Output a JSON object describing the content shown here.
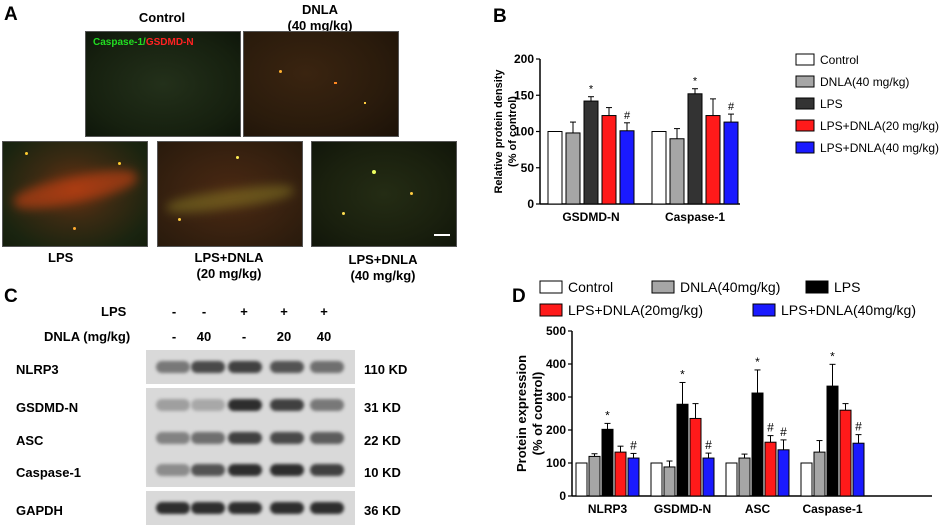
{
  "panels": {
    "A": {
      "letter": "A",
      "images": [
        {
          "label": "Control",
          "overlay": "Caspase-1/GSDMD-N",
          "overlay_green": "Caspase-1/",
          "overlay_red": "GSDMD-N"
        },
        {
          "label_line1": "DNLA",
          "label_line2": "(40 mg/kg)"
        },
        {
          "label": "LPS"
        },
        {
          "label_line1": "LPS+DNLA",
          "label_line2": "(20 mg/kg)"
        },
        {
          "label_line1": "LPS+DNLA",
          "label_line2": "(40 mg/kg)"
        }
      ]
    },
    "B": {
      "letter": "B"
    },
    "C": {
      "letter": "C",
      "lps_label": "LPS",
      "dnla_label": "DNLA (mg/kg)",
      "lps_signs": [
        "-",
        "-",
        "+",
        "+",
        "+"
      ],
      "dnla_doses": [
        "-",
        "40",
        "-",
        "20",
        "40"
      ],
      "blots": [
        {
          "protein": "NLRP3",
          "size": "110 KD",
          "intensity": [
            0.55,
            0.8,
            0.85,
            0.75,
            0.6
          ]
        },
        {
          "protein": "GSDMD-N",
          "size": "31 KD",
          "intensity": [
            0.35,
            0.3,
            0.95,
            0.85,
            0.55
          ]
        },
        {
          "protein": "ASC",
          "size": "22 KD",
          "intensity": [
            0.5,
            0.6,
            0.85,
            0.8,
            0.7
          ]
        },
        {
          "protein": "Caspase-1",
          "size": "10 KD",
          "intensity": [
            0.45,
            0.75,
            0.95,
            0.95,
            0.85
          ]
        },
        {
          "protein": "GAPDH",
          "size": "36 KD",
          "intensity": [
            0.95,
            0.95,
            0.95,
            0.95,
            0.95
          ]
        }
      ]
    },
    "D": {
      "letter": "D"
    }
  },
  "colors": {
    "control": "#ffffff",
    "dnla40": "#a6a6a6",
    "lps": "#000000",
    "lps_dnla20": "#ff1a1a",
    "lps_dnla40": "#1a1aff",
    "lps_b": "#333333",
    "overlay_green": "#22dd22",
    "overlay_red": "#ff2222"
  },
  "chart_data": [
    {
      "type": "bar",
      "panel": "B",
      "categories": [
        "GSDMD-N",
        "Caspase-1"
      ],
      "ylabel_line1": "Relative protein density",
      "ylabel_line2": "(% of control)",
      "ylim": [
        0,
        200
      ],
      "yticks": [
        "0",
        "50",
        "100",
        "150",
        "200"
      ],
      "legend_position": "right",
      "series": [
        {
          "name": "Control",
          "values": [
            100,
            100
          ],
          "errors": [
            0,
            0
          ],
          "marks": [
            "",
            ""
          ]
        },
        {
          "name": "DNLA(40 mg/kg)",
          "values": [
            98,
            90
          ],
          "errors": [
            15,
            14
          ],
          "marks": [
            "",
            ""
          ]
        },
        {
          "name": "LPS",
          "values": [
            142,
            152
          ],
          "errors": [
            6,
            7
          ],
          "marks": [
            "*",
            "*"
          ]
        },
        {
          "name": "LPS+DNLA(20 mg/kg)",
          "values": [
            122,
            122
          ],
          "errors": [
            11,
            23
          ],
          "marks": [
            "",
            ""
          ]
        },
        {
          "name": "LPS+DNLA(40 mg/kg)",
          "values": [
            101,
            113
          ],
          "errors": [
            11,
            11
          ],
          "marks": [
            "#",
            "#"
          ]
        }
      ]
    },
    {
      "type": "bar",
      "panel": "D",
      "categories": [
        "NLRP3",
        "GSDMD-N",
        "ASC",
        "Caspase-1"
      ],
      "ylabel_line1": "Protein expression",
      "ylabel_line2": "(% of control)",
      "ylim": [
        0,
        500
      ],
      "yticks": [
        "0",
        "100",
        "200",
        "300",
        "400",
        "500"
      ],
      "legend_position": "top",
      "series": [
        {
          "name": "Control",
          "values": [
            100,
            100,
            100,
            100
          ],
          "errors": [
            0,
            0,
            0,
            0
          ],
          "marks": [
            "",
            "",
            "",
            ""
          ]
        },
        {
          "name": "DNLA(40mg/kg)",
          "values": [
            120,
            88,
            115,
            133
          ],
          "errors": [
            8,
            18,
            12,
            35
          ],
          "marks": [
            "",
            "",
            "",
            ""
          ]
        },
        {
          "name": "LPS",
          "values": [
            202,
            278,
            312,
            333
          ],
          "errors": [
            18,
            66,
            70,
            66
          ],
          "marks": [
            "*",
            "*",
            "*",
            "*"
          ]
        },
        {
          "name": "LPS+DNLA(20mg/kg)",
          "values": [
            133,
            235,
            163,
            260
          ],
          "errors": [
            18,
            45,
            20,
            20
          ],
          "marks": [
            "",
            "",
            "#",
            ""
          ]
        },
        {
          "name": "LPS+DNLA(40mg/kg)",
          "values": [
            115,
            115,
            140,
            160
          ],
          "errors": [
            14,
            15,
            30,
            26
          ],
          "marks": [
            "#",
            "#",
            "#",
            "#"
          ]
        }
      ]
    }
  ]
}
